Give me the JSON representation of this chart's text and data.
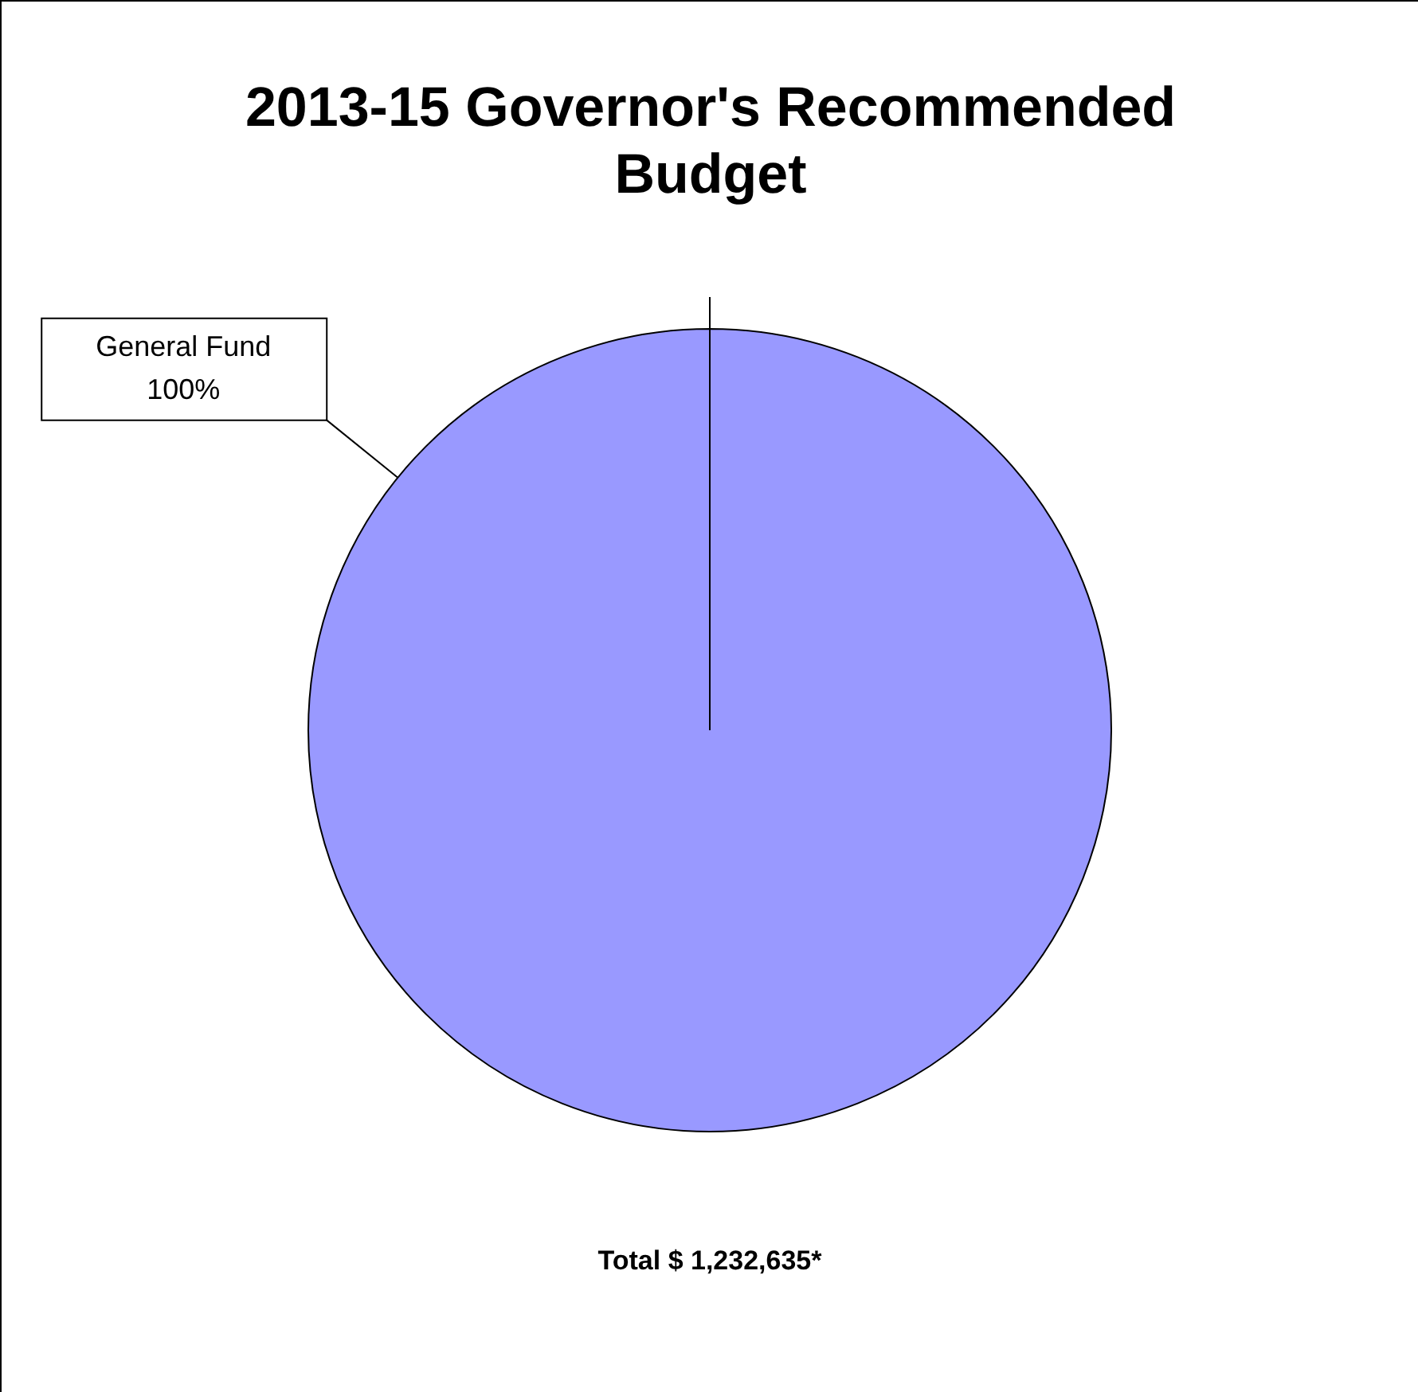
{
  "chart_data": {
    "type": "pie",
    "title": "2013-15 Governor's Recommended Budget",
    "categories": [
      "General Fund"
    ],
    "values": [
      100
    ],
    "colors": [
      "#9999ff"
    ],
    "value_labels": [
      "100%"
    ],
    "needle": "General Fund",
    "legend": false,
    "annotations": [
      "Total $ 1,232,635*"
    ]
  }
}
